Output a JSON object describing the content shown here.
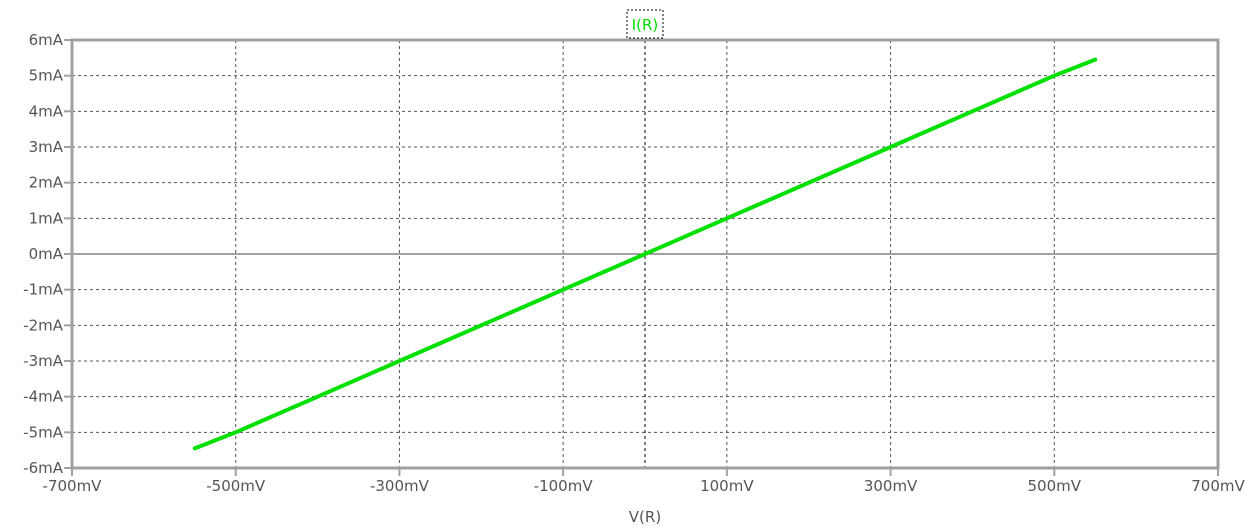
{
  "chart_data": {
    "type": "line",
    "title": "I(R)",
    "xlabel": "V(R)",
    "ylabel": "",
    "xlim": [
      -700,
      700
    ],
    "ylim": [
      -6,
      6
    ],
    "x_unit": "mV",
    "y_unit": "mA",
    "x_ticks": [
      -700,
      -500,
      -300,
      -100,
      100,
      300,
      500,
      700
    ],
    "x_tick_labels": [
      "-700mV",
      "-500mV",
      "-300mV",
      "-100mV",
      "100mV",
      "300mV",
      "500mV",
      "700mV"
    ],
    "x_grid": [
      -500,
      -300,
      -100,
      0,
      100,
      300,
      500
    ],
    "y_ticks": [
      6,
      5,
      4,
      3,
      2,
      1,
      0,
      -1,
      -2,
      -3,
      -4,
      -5,
      -6
    ],
    "y_tick_labels": [
      "6mA",
      "5mA",
      "4mA",
      "3mA",
      "2mA",
      "1mA",
      "0mA",
      "-1mA",
      "-2mA",
      "-3mA",
      "-4mA",
      "-5mA",
      "-6mA"
    ],
    "grid": true,
    "series": [
      {
        "name": "I(R)",
        "color": "#00e000",
        "x": [
          -550,
          -500,
          -400,
          -300,
          -200,
          -100,
          0,
          10,
          100,
          200,
          300,
          400,
          500,
          550
        ],
        "y": [
          -5.45,
          -5.0,
          -4.0,
          -3.0,
          -2.0,
          -1.0,
          0.0,
          0.1,
          1.0,
          2.0,
          3.0,
          4.0,
          5.0,
          5.45
        ]
      }
    ]
  },
  "colors": {
    "frame": "#a0a0a0",
    "grid": "#555555",
    "zero_axis": "#404040",
    "text": "#555555"
  }
}
